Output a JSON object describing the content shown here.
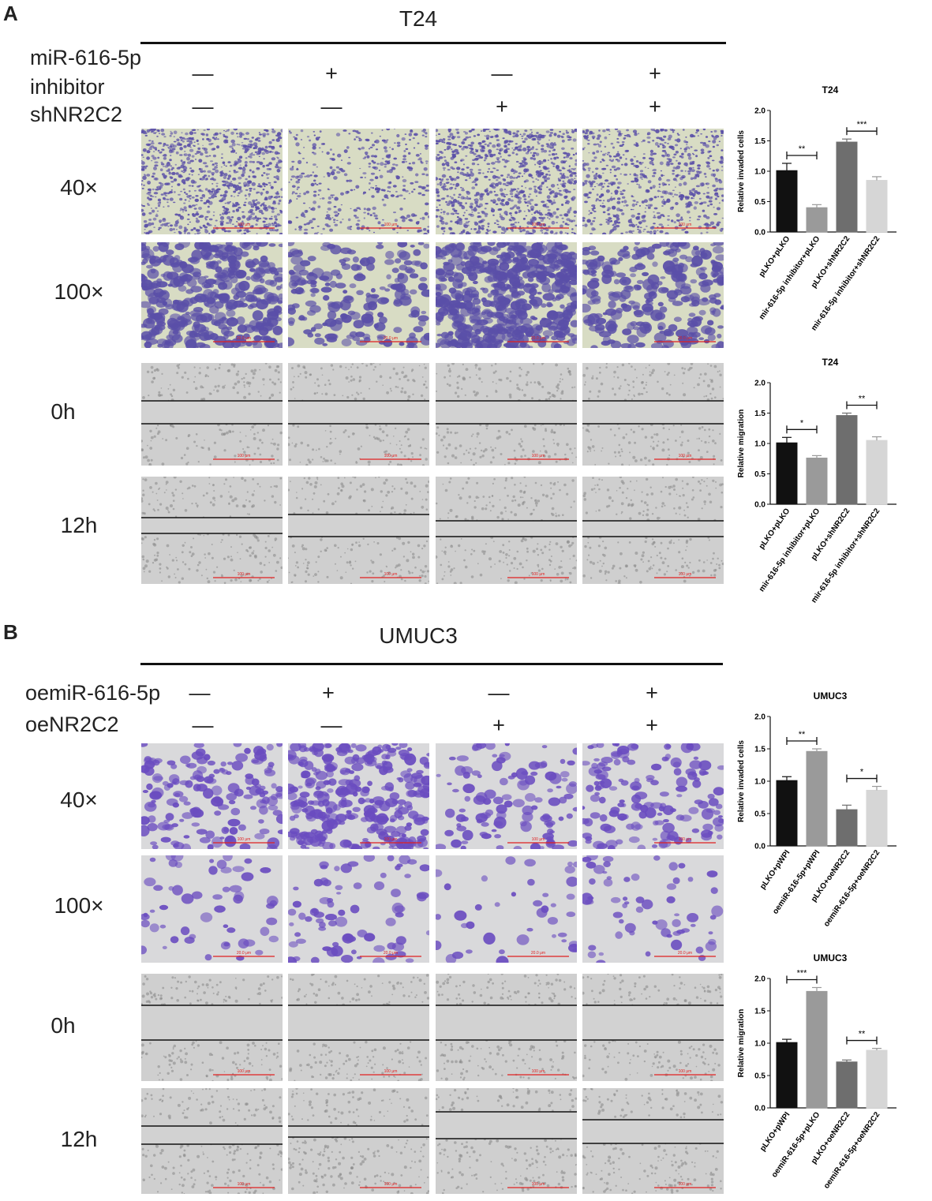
{
  "panelA": {
    "letter": "A",
    "cell_line": "T24",
    "treatments": [
      {
        "label": "miR-616-5p",
        "signs": []
      },
      {
        "label": "inhibitor",
        "signs": [
          "—",
          "+",
          "—",
          "+"
        ]
      },
      {
        "label": "shNR2C2",
        "signs": [
          "—",
          "—",
          "+",
          "+"
        ]
      }
    ],
    "rows": [
      "40×",
      "100×",
      "0h",
      "12h"
    ],
    "scale_labels": [
      "100 μm",
      "100 μm",
      "20.0 μm",
      "100 μm"
    ]
  },
  "panelB": {
    "letter": "B",
    "cell_line": "UMUC3",
    "treatments": [
      {
        "label": "oemiR-616-5p",
        "signs": [
          "—",
          "+",
          "—",
          "+"
        ]
      },
      {
        "label": "oeNR2C2",
        "signs": [
          "—",
          "—",
          "+",
          "+"
        ]
      }
    ],
    "rows": [
      "40×",
      "100×",
      "0h",
      "12h"
    ],
    "scale_labels": [
      "100 μm",
      "20.0 μm",
      "100 μm",
      "100 μm"
    ]
  },
  "colors": {
    "bar1": "#111111",
    "bar2": "#9a9a9a",
    "bar3": "#6e6e6e",
    "bar4": "#d6d6d6",
    "invasion_t24_bg": "#d8dcc4",
    "invasion_t24_cell": "#5a4fa8",
    "invasion_umuc3_bg": "#d9d9db",
    "invasion_umuc3_cell": "#6a4cc0",
    "wound_bg": "#cfcfcf",
    "scalebar": "#e02020"
  },
  "chart_data": [
    {
      "type": "bar",
      "title": "T24",
      "ylabel": "Relative invaded cells",
      "ylim": [
        0,
        2.0
      ],
      "yticks": [
        "0.0",
        "0.5",
        "1.0",
        "1.5",
        "2.0"
      ],
      "categories": [
        "pLKO+pLKO",
        "mir-616-5p inhibitor+pLKO",
        "pLKO+shNR2C2",
        "mir-616-5p inhibitor+shNR2C2"
      ],
      "values": [
        1.01,
        0.4,
        1.48,
        0.85
      ],
      "errors": [
        0.12,
        0.05,
        0.05,
        0.06
      ],
      "significance": [
        {
          "from": 0,
          "to": 1,
          "label": "**"
        },
        {
          "from": 2,
          "to": 3,
          "label": "***"
        }
      ]
    },
    {
      "type": "bar",
      "title": "T24",
      "ylabel": "Relative migration",
      "ylim": [
        0,
        2.0
      ],
      "yticks": [
        "0.0",
        "0.5",
        "1.0",
        "1.5",
        "2.0"
      ],
      "categories": [
        "pLKO+pLKO",
        "mir-616-5p inhibitor+pLKO",
        "pLKO+shNR2C2",
        "mir-616-5p inhibitor+shNR2C2"
      ],
      "values": [
        1.01,
        0.76,
        1.46,
        1.05
      ],
      "errors": [
        0.09,
        0.04,
        0.04,
        0.06
      ],
      "significance": [
        {
          "from": 0,
          "to": 1,
          "label": "*"
        },
        {
          "from": 2,
          "to": 3,
          "label": "**"
        }
      ]
    },
    {
      "type": "bar",
      "title": "UMUC3",
      "ylabel": "Relative invaded cells",
      "ylim": [
        0,
        2.0
      ],
      "yticks": [
        "0.0",
        "0.5",
        "1.0",
        "1.5",
        "2.0"
      ],
      "categories": [
        "pLKO+pWPI",
        "oemiR-616-5p+pWPI",
        "pLKO+oeNR2C2",
        "oemiR-616-5p+oeNR2C2"
      ],
      "values": [
        1.01,
        1.46,
        0.56,
        0.86
      ],
      "errors": [
        0.06,
        0.04,
        0.07,
        0.06
      ],
      "significance": [
        {
          "from": 0,
          "to": 1,
          "label": "**"
        },
        {
          "from": 2,
          "to": 3,
          "label": "*"
        }
      ]
    },
    {
      "type": "bar",
      "title": "UMUC3",
      "ylabel": "Relative migration",
      "ylim": [
        0,
        2.0
      ],
      "yticks": [
        "0.0",
        "0.5",
        "1.0",
        "1.5",
        "2.0"
      ],
      "categories": [
        "pLKO+pWPI",
        "oemiR-616-5p+pLKO",
        "pLKO+oeNR2C2",
        "oemiR-616-5p+oeNR2C2"
      ],
      "values": [
        1.01,
        1.8,
        0.71,
        0.89
      ],
      "errors": [
        0.05,
        0.06,
        0.03,
        0.03
      ],
      "significance": [
        {
          "from": 0,
          "to": 1,
          "label": "***"
        },
        {
          "from": 2,
          "to": 3,
          "label": "**"
        }
      ]
    }
  ]
}
